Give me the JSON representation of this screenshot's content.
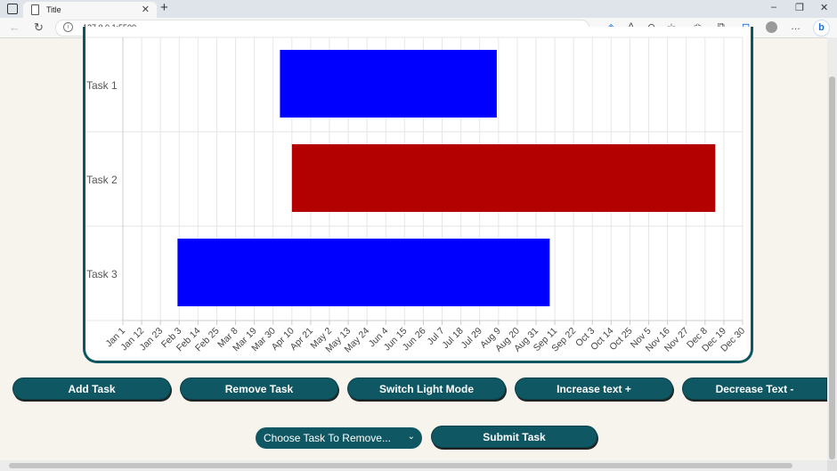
{
  "browser": {
    "tab_title": "Title",
    "tab_close": "✕",
    "new_tab": "+",
    "url": "127.0.0.1:5500",
    "info_glyph": "i",
    "bing_glyph": "b",
    "window_controls": [
      "–",
      "❐",
      "✕"
    ],
    "nav_glyphs": [
      "←",
      "↻"
    ],
    "toolbar_glyphs": [
      "◈",
      "A",
      "⊖",
      "☆",
      "✩",
      "⧉",
      "⊡",
      "…"
    ]
  },
  "chart_data": {
    "type": "gantt",
    "tasks": [
      {
        "name": "Task 1",
        "start": "2023-04-03",
        "end": "2023-08-08",
        "color": "#0000ff"
      },
      {
        "name": "Task 2",
        "start": "2023-04-10",
        "end": "2023-12-14",
        "color": "#b30000"
      },
      {
        "name": "Task 3",
        "start": "2023-02-02",
        "end": "2023-09-08",
        "color": "#0000ff"
      }
    ],
    "x_ticks": [
      "Jan 1",
      "Jan 12",
      "Jan 23",
      "Feb 3",
      "Feb 14",
      "Feb 25",
      "Mar 8",
      "Mar 19",
      "Mar 30",
      "Apr 10",
      "Apr 21",
      "May 2",
      "May 13",
      "May 24",
      "Jun 4",
      "Jun 15",
      "Jun 26",
      "Jul 7",
      "Jul 18",
      "Jul 29",
      "Aug 9",
      "Aug 20",
      "Aug 31",
      "Sep 11",
      "Sep 22",
      "Oct 3",
      "Oct 14",
      "Oct 25",
      "Nov 5",
      "Nov 16",
      "Nov 27",
      "Dec 8",
      "Dec 19",
      "Dec 30"
    ],
    "x_range": [
      "2023-01-01",
      "2023-12-30"
    ],
    "grid": true
  },
  "controls": {
    "add_task": "Add Task",
    "remove_task": "Remove Task",
    "switch_mode": "Switch Light Mode",
    "increase_text": "Increase text +",
    "decrease_text": "Decrease Text -",
    "remove_select": "Choose Task To Remove...",
    "remove_select_chevron": "⌄",
    "submit_task": "Submit Task"
  },
  "colors": {
    "accent": "#0f5763",
    "page_bg": "#f7f4ee"
  }
}
